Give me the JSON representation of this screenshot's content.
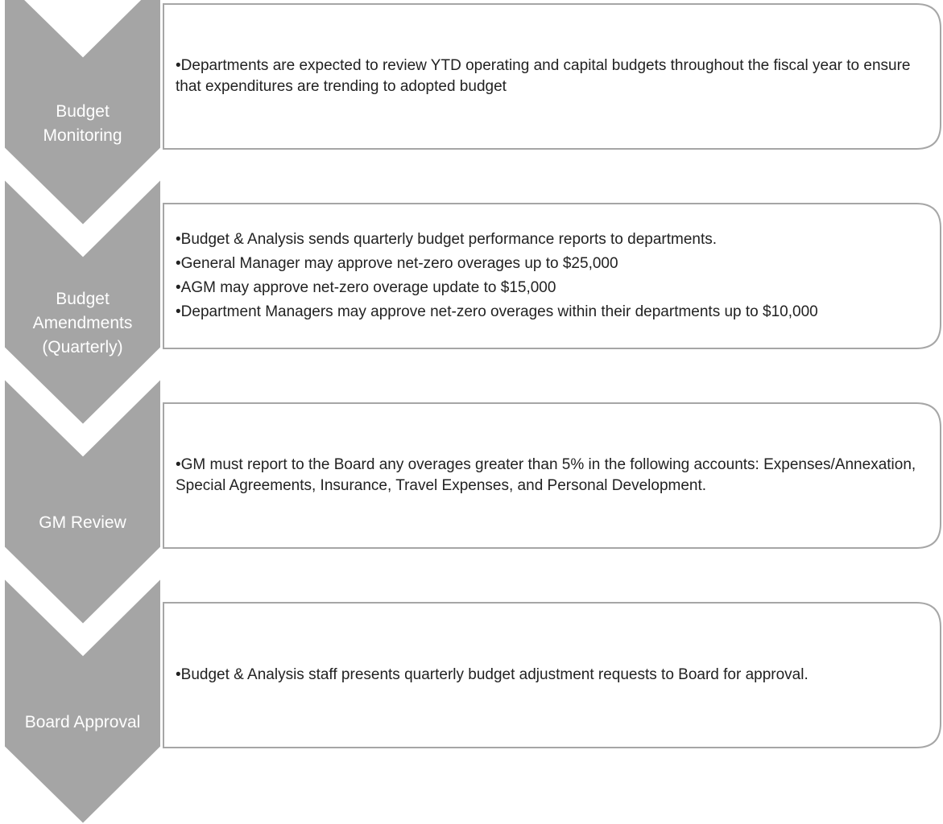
{
  "steps": [
    {
      "label": "Budget Monitoring",
      "bullets": [
        "•Departments are expected to review YTD operating and capital budgets throughout the fiscal year to ensure that expenditures are trending to adopted budget"
      ]
    },
    {
      "label": "Budget Amendments (Quarterly)",
      "bullets": [
        "•Budget & Analysis sends quarterly budget performance reports to departments.",
        "•General Manager may approve net-zero overages up to $25,000",
        "•AGM may approve net-zero overage update to $15,000",
        "•Department Managers may approve net-zero overages within their departments up to $10,000"
      ]
    },
    {
      "label": "GM Review",
      "bullets": [
        "•GM must report to the Board any overages greater than 5% in the following accounts: Expenses/Annexation, Special Agreements, Insurance, Travel Expenses, and Personal Development."
      ]
    },
    {
      "label": "Board Approval",
      "bullets": [
        "•Budget & Analysis staff presents quarterly budget adjustment requests to Board for approval."
      ]
    }
  ]
}
